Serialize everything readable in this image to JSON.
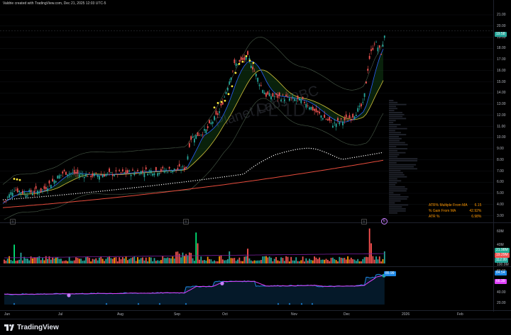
{
  "caption": "Valdrie created with TradingView.com, Dec 21, 2025 12:03 UTC-5",
  "watermark": {
    "name": "Planet Labs PBC",
    "ticker": "PL 1D"
  },
  "price_axis": [
    "21.00",
    "20.00",
    "19.00",
    "18.00",
    "17.00",
    "16.00",
    "15.00",
    "14.00",
    "13.00",
    "12.00",
    "11.00",
    "10.00",
    "9.00",
    "8.00",
    "7.00",
    "6.00",
    "5.00",
    "4.00",
    "3.00"
  ],
  "last_price": "19.58",
  "x_axis": [
    "Jun",
    "Jul",
    "Aug",
    "Sep",
    "Oct",
    "Nov",
    "Dec",
    "2026",
    "Feb"
  ],
  "metrics": [
    {
      "label": "ATR% Multiple From MA",
      "value": "6.15"
    },
    {
      "label": "% Gain From MA",
      "value": "42.92%"
    },
    {
      "label": "ATR %",
      "value": "6.98%"
    }
  ],
  "volume_axis": [
    "60M",
    "40M",
    "20M"
  ],
  "volume_tags": [
    "21.98M",
    "19.29M",
    "112.99"
  ],
  "volume_tag_unit": "100.0M",
  "osc_axis": [
    "80.00",
    "60.00",
    "40.00",
    "20.00"
  ],
  "osc_tags": [
    "85.99",
    "84.54",
    "66.39"
  ],
  "brand": "TradingView",
  "colors": {
    "up": "#26a69a",
    "down": "#ef5350",
    "ma_short": "#2962ff",
    "ma_mid": "#d4c23a",
    "ma_long": "#e74c3c",
    "osc": "#1e88e5",
    "osc_signal": "#e040fb",
    "dots": "#ffeb3b"
  },
  "icons": [
    "tradingview-logo-icon",
    "dividend-marker-icon",
    "earnings-marker-icon"
  ]
}
